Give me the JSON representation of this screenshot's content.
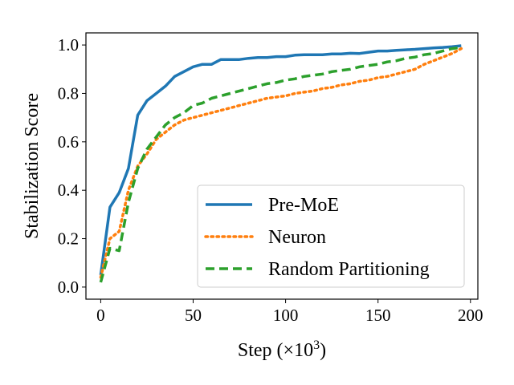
{
  "chart_data": {
    "type": "line",
    "title": "",
    "xlabel": "Step (×10",
    "xlabel_exp": "3",
    "xlabel_close": ")",
    "ylabel": "Stabilization Score",
    "xlim": [
      -8,
      204
    ],
    "ylim": [
      -0.05,
      1.05
    ],
    "xticks": [
      0,
      50,
      100,
      150,
      200
    ],
    "yticks": [
      0.0,
      0.2,
      0.4,
      0.6,
      0.8,
      1.0
    ],
    "xtick_labels": [
      "0",
      "50",
      "100",
      "150",
      "200"
    ],
    "ytick_labels": [
      "0.0",
      "0.2",
      "0.4",
      "0.6",
      "0.8",
      "1.0"
    ],
    "grid": false,
    "legend_position": "lower-right",
    "series": [
      {
        "name": "Pre-MoE",
        "color": "#1f77b4",
        "style": "solid",
        "x": [
          0,
          5,
          10,
          15,
          20,
          25,
          30,
          35,
          40,
          45,
          50,
          55,
          60,
          65,
          70,
          75,
          80,
          85,
          90,
          95,
          100,
          105,
          110,
          115,
          120,
          125,
          130,
          135,
          140,
          145,
          150,
          155,
          160,
          165,
          170,
          175,
          180,
          185,
          190,
          195
        ],
        "y": [
          0.05,
          0.33,
          0.39,
          0.49,
          0.71,
          0.77,
          0.8,
          0.83,
          0.87,
          0.89,
          0.91,
          0.92,
          0.92,
          0.94,
          0.94,
          0.94,
          0.945,
          0.948,
          0.948,
          0.952,
          0.952,
          0.958,
          0.96,
          0.96,
          0.96,
          0.963,
          0.963,
          0.966,
          0.965,
          0.97,
          0.975,
          0.975,
          0.978,
          0.98,
          0.982,
          0.985,
          0.988,
          0.99,
          0.993,
          0.997
        ]
      },
      {
        "name": "Neuron",
        "color": "#ff7f0e",
        "style": "dotted",
        "x": [
          0,
          5,
          10,
          15,
          20,
          25,
          30,
          35,
          40,
          45,
          50,
          55,
          60,
          65,
          70,
          75,
          80,
          85,
          90,
          95,
          100,
          105,
          110,
          115,
          120,
          125,
          130,
          135,
          140,
          145,
          150,
          155,
          160,
          165,
          170,
          175,
          180,
          185,
          190,
          195
        ],
        "y": [
          0.04,
          0.2,
          0.23,
          0.4,
          0.5,
          0.55,
          0.61,
          0.64,
          0.67,
          0.69,
          0.7,
          0.71,
          0.72,
          0.73,
          0.74,
          0.75,
          0.76,
          0.77,
          0.78,
          0.785,
          0.79,
          0.8,
          0.805,
          0.81,
          0.82,
          0.825,
          0.835,
          0.84,
          0.85,
          0.855,
          0.865,
          0.87,
          0.88,
          0.89,
          0.9,
          0.92,
          0.935,
          0.95,
          0.965,
          0.985
        ]
      },
      {
        "name": "Random Partitioning",
        "color": "#2ca02c",
        "style": "dashed",
        "x": [
          0,
          5,
          10,
          15,
          20,
          25,
          30,
          35,
          40,
          45,
          50,
          55,
          60,
          65,
          70,
          75,
          80,
          85,
          90,
          95,
          100,
          105,
          110,
          115,
          120,
          125,
          130,
          135,
          140,
          145,
          150,
          155,
          160,
          165,
          170,
          175,
          180,
          185,
          190,
          195
        ],
        "y": [
          0.02,
          0.16,
          0.15,
          0.35,
          0.49,
          0.57,
          0.62,
          0.67,
          0.7,
          0.72,
          0.75,
          0.76,
          0.78,
          0.79,
          0.8,
          0.81,
          0.82,
          0.83,
          0.84,
          0.845,
          0.855,
          0.86,
          0.87,
          0.875,
          0.88,
          0.89,
          0.895,
          0.9,
          0.91,
          0.915,
          0.92,
          0.93,
          0.935,
          0.945,
          0.95,
          0.96,
          0.965,
          0.975,
          0.985,
          0.99
        ]
      }
    ]
  }
}
